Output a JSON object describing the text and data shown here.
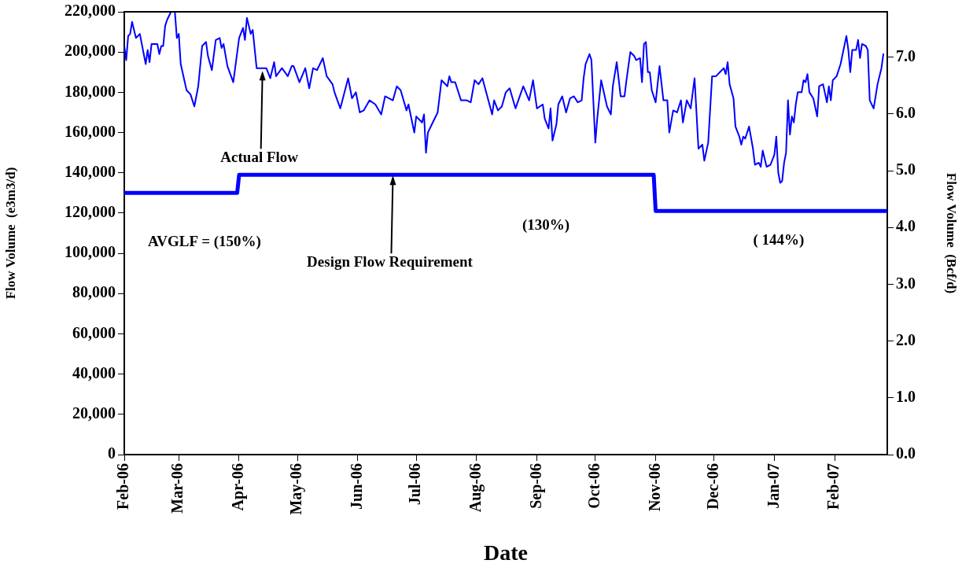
{
  "chart_data": {
    "type": "line",
    "xlabel": "Date",
    "ylabel": "Flow Volume  (e3m3/d)",
    "y2label": "Flow Volume  (Bcf/d)",
    "xlim": [
      "2006-02-01",
      "2007-02-28"
    ],
    "xticks": [
      {
        "value": "2006-02-01",
        "label": "Feb-06"
      },
      {
        "value": "2006-03-01",
        "label": "Mar-06"
      },
      {
        "value": "2006-04-01",
        "label": "Apr-06"
      },
      {
        "value": "2006-05-01",
        "label": "May-06"
      },
      {
        "value": "2006-06-01",
        "label": "Jun-06"
      },
      {
        "value": "2006-07-01",
        "label": "Jul-06"
      },
      {
        "value": "2006-08-01",
        "label": "Aug-06"
      },
      {
        "value": "2006-09-01",
        "label": "Sep-06"
      },
      {
        "value": "2006-10-01",
        "label": "Oct-06"
      },
      {
        "value": "2006-11-01",
        "label": "Nov-06"
      },
      {
        "value": "2006-12-01",
        "label": "Dec-06"
      },
      {
        "value": "2007-01-01",
        "label": "Jan-07"
      },
      {
        "value": "2007-02-01",
        "label": "Feb-07"
      }
    ],
    "ylim": [
      0,
      220000
    ],
    "yticks": [
      0,
      {
        "value": 20000,
        "label": "20,000"
      },
      {
        "value": 40000,
        "label": "40,000"
      },
      {
        "value": 60000,
        "label": "60,000"
      },
      {
        "value": 80000,
        "label": "80,000"
      },
      {
        "value": 100000,
        "label": "100,000"
      },
      {
        "value": 120000,
        "label": "120,000"
      },
      {
        "value": 140000,
        "label": "140,000"
      },
      {
        "value": 160000,
        "label": "160,000"
      },
      {
        "value": 180000,
        "label": "180,000"
      },
      {
        "value": 200000,
        "label": "200,000"
      },
      {
        "value": 220000,
        "label": "220,000"
      }
    ],
    "y2lim": [
      0,
      7.8
    ],
    "y2ticks": [
      {
        "value": 0,
        "label": "0.0"
      },
      {
        "value": 1,
        "label": "1.0"
      },
      {
        "value": 2,
        "label": "2.0"
      },
      {
        "value": 3,
        "label": "3.0"
      },
      {
        "value": 4,
        "label": "4.0"
      },
      {
        "value": 5,
        "label": "5.0"
      },
      {
        "value": 6,
        "label": "6.0"
      },
      {
        "value": 7,
        "label": "7.0"
      }
    ],
    "grid": false,
    "legend": false,
    "marker": "none",
    "line_style": "solid",
    "annotations": [
      {
        "text": "Actual Flow",
        "x": "2006-04-13",
        "y": 191000
      },
      {
        "text": "Design Flow Requirement",
        "x": "2006-06-19",
        "y": 139000
      },
      "AVGLF = (150%)",
      "(130%)",
      "( 144%)"
    ],
    "series": [
      {
        "color": "#0000ff",
        "x": [
          "2006-02-01",
          "2006-02-02",
          "2006-02-03",
          "2006-02-04",
          "2006-02-05",
          "2006-02-07",
          "2006-02-09",
          "2006-02-12",
          "2006-02-13",
          "2006-02-14",
          "2006-02-15",
          "2006-02-18",
          "2006-02-19",
          "2006-02-20",
          "2006-02-21",
          "2006-02-22",
          "2006-02-23",
          "2006-02-25",
          "2006-02-27",
          "2006-02-28",
          "2006-03-01",
          "2006-03-02",
          "2006-03-05",
          "2006-03-07",
          "2006-03-09",
          "2006-03-11",
          "2006-03-13",
          "2006-03-15",
          "2006-03-16",
          "2006-03-18",
          "2006-03-20",
          "2006-03-22",
          "2006-03-23",
          "2006-03-24",
          "2006-03-26",
          "2006-03-29",
          "2006-04-01",
          "2006-04-03",
          "2006-04-04",
          "2006-04-05",
          "2006-04-07",
          "2006-04-08",
          "2006-04-10",
          "2006-04-13",
          "2006-04-15",
          "2006-04-17",
          "2006-04-19",
          "2006-04-20",
          "2006-04-23",
          "2006-04-26",
          "2006-04-28",
          "2006-04-29",
          "2006-05-02",
          "2006-05-05",
          "2006-05-07",
          "2006-05-09",
          "2006-05-11",
          "2006-05-14",
          "2006-05-16",
          "2006-05-19",
          "2006-05-20",
          "2006-05-23",
          "2006-05-27",
          "2006-05-29",
          "2006-05-31",
          "2006-06-02",
          "2006-06-04",
          "2006-06-07",
          "2006-06-10",
          "2006-06-13",
          "2006-06-15",
          "2006-06-19",
          "2006-06-21",
          "2006-06-23",
          "2006-06-26",
          "2006-06-27",
          "2006-06-30",
          "2006-07-01",
          "2006-07-04",
          "2006-07-05",
          "2006-07-06",
          "2006-07-07",
          "2006-07-09",
          "2006-07-12",
          "2006-07-14",
          "2006-07-17",
          "2006-07-18",
          "2006-07-19",
          "2006-07-21",
          "2006-07-24",
          "2006-07-27",
          "2006-07-29",
          "2006-07-31",
          "2006-08-02",
          "2006-08-04",
          "2006-08-09",
          "2006-08-10",
          "2006-08-12",
          "2006-08-14",
          "2006-08-16",
          "2006-08-18",
          "2006-08-21",
          "2006-08-25",
          "2006-08-28",
          "2006-08-30",
          "2006-09-01",
          "2006-09-04",
          "2006-09-05",
          "2006-09-07",
          "2006-09-08",
          "2006-09-09",
          "2006-09-11",
          "2006-09-12",
          "2006-09-14",
          "2006-09-16",
          "2006-09-18",
          "2006-09-20",
          "2006-09-22",
          "2006-09-24",
          "2006-09-25",
          "2006-09-26",
          "2006-09-28",
          "2006-09-29",
          "2006-10-01",
          "2006-10-02",
          "2006-10-04",
          "2006-10-07",
          "2006-10-09",
          "2006-10-10",
          "2006-10-12",
          "2006-10-14",
          "2006-10-16",
          "2006-10-17",
          "2006-10-19",
          "2006-10-21",
          "2006-10-22",
          "2006-10-24",
          "2006-10-25",
          "2006-10-26",
          "2006-10-27",
          "2006-10-28",
          "2006-10-29",
          "2006-10-30",
          "2006-11-01",
          "2006-11-03",
          "2006-11-05",
          "2006-11-07",
          "2006-11-08",
          "2006-11-10",
          "2006-11-12",
          "2006-11-14",
          "2006-11-15",
          "2006-11-17",
          "2006-11-19",
          "2006-11-21",
          "2006-11-23",
          "2006-11-25",
          "2006-11-26",
          "2006-11-28",
          "2006-11-30",
          "2006-12-02",
          "2006-12-04",
          "2006-12-06",
          "2006-12-07",
          "2006-12-08",
          "2006-12-09",
          "2006-12-11",
          "2006-12-12",
          "2006-12-14",
          "2006-12-15",
          "2006-12-16",
          "2006-12-17",
          "2006-12-19",
          "2006-12-21",
          "2006-12-22",
          "2006-12-24",
          "2006-12-25",
          "2006-12-26",
          "2006-12-28",
          "2006-12-30",
          "2007-01-01",
          "2007-01-02",
          "2007-01-03",
          "2007-01-04",
          "2007-01-05",
          "2007-01-06",
          "2007-01-07",
          "2007-01-08",
          "2007-01-09",
          "2007-01-10",
          "2007-01-11",
          "2007-01-12",
          "2007-01-13",
          "2007-01-15",
          "2007-01-16",
          "2007-01-17",
          "2007-01-18",
          "2007-01-19",
          "2007-01-21",
          "2007-01-23",
          "2007-01-24",
          "2007-01-26",
          "2007-01-28",
          "2007-01-29",
          "2007-01-30",
          "2007-01-31",
          "2007-02-02",
          "2007-02-04",
          "2007-02-07",
          "2007-02-08",
          "2007-02-09",
          "2007-02-10",
          "2007-02-12",
          "2007-02-13",
          "2007-02-14",
          "2007-02-15",
          "2007-02-17",
          "2007-02-18",
          "2007-02-19",
          "2007-02-21",
          "2007-02-23",
          "2007-02-25",
          "2007-02-26"
        ],
        "values": [
          203000,
          196000,
          208000,
          209000,
          215000,
          207000,
          209000,
          194000,
          201000,
          195000,
          204000,
          204000,
          199000,
          203000,
          203000,
          213000,
          216000,
          220000,
          220000,
          207000,
          209000,
          194000,
          181000,
          179000,
          173000,
          183000,
          203000,
          205000,
          198000,
          191000,
          206000,
          207000,
          202000,
          204000,
          193000,
          185000,
          207000,
          212000,
          206000,
          217000,
          209000,
          211000,
          192000,
          192000,
          192000,
          187000,
          195000,
          188000,
          192000,
          188000,
          193000,
          193000,
          185000,
          192000,
          182000,
          192000,
          191000,
          197000,
          188000,
          184000,
          180000,
          172000,
          187000,
          177000,
          180000,
          170000,
          171000,
          176000,
          174000,
          169000,
          178000,
          176000,
          183000,
          181000,
          171000,
          174000,
          160000,
          168000,
          165000,
          169000,
          150000,
          160000,
          164000,
          170000,
          186000,
          183000,
          188000,
          185000,
          185000,
          176000,
          176000,
          175000,
          186000,
          184000,
          187000,
          169000,
          176000,
          171000,
          173000,
          180000,
          182000,
          172000,
          183000,
          176000,
          186000,
          172000,
          174000,
          167000,
          162000,
          172000,
          156000,
          164000,
          174000,
          178000,
          170000,
          177000,
          178000,
          175000,
          176000,
          187000,
          194000,
          199000,
          196000,
          155000,
          167000,
          186000,
          173000,
          169000,
          183000,
          195000,
          178000,
          178000,
          186000,
          200000,
          198000,
          196000,
          197000,
          185000,
          204000,
          205000,
          190000,
          190000,
          181000,
          175000,
          193000,
          176000,
          176000,
          160000,
          171000,
          170000,
          176000,
          165000,
          176000,
          172000,
          187000,
          152000,
          154000,
          146000,
          155000,
          188000,
          188000,
          190000,
          192000,
          189000,
          195000,
          184000,
          177000,
          163000,
          158000,
          154000,
          158000,
          157000,
          163000,
          152000,
          144000,
          145000,
          143000,
          151000,
          143000,
          144000,
          149000,
          158000,
          140000,
          135000,
          136000,
          145000,
          150000,
          176000,
          159000,
          168000,
          165000,
          174000,
          180000,
          180000,
          186000,
          185000,
          189000,
          180000,
          177000,
          168000,
          183000,
          184000,
          175000,
          183000,
          176000,
          186000,
          188000,
          194000,
          208000,
          201000,
          190000,
          201000,
          201000,
          206000,
          197000,
          204000,
          203000,
          201000,
          176000,
          172000,
          184000,
          192000,
          199000
        ]
      },
      {
        "color": "#0000ff",
        "x": [
          "2006-02-01",
          "2006-03-31",
          "2006-04-01",
          "2006-10-31",
          "2006-11-01",
          "2007-02-28"
        ],
        "values": [
          130000,
          130000,
          139000,
          139000,
          121000,
          121000
        ]
      }
    ]
  }
}
